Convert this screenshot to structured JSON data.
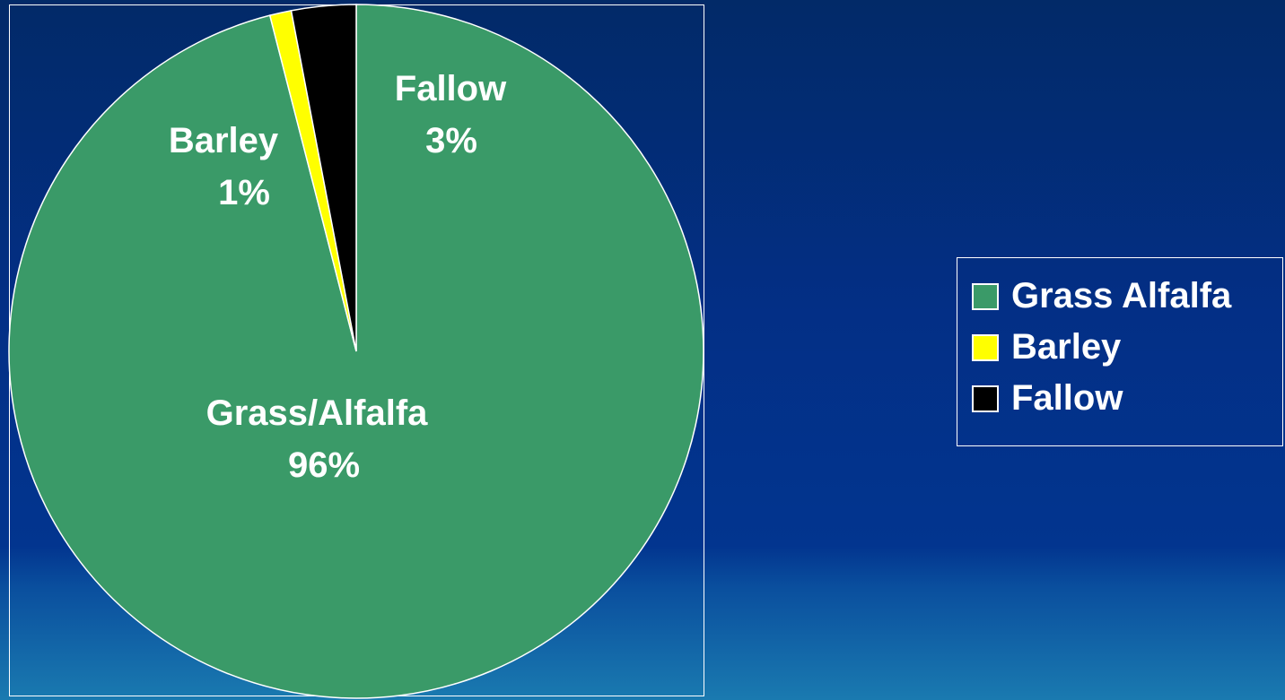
{
  "chart_data": {
    "type": "pie",
    "title": "",
    "slices": [
      {
        "name": "Grass/Alfalfa",
        "value": 96,
        "label": "Grass/Alfalfa",
        "percent_label": "96%",
        "color": "#3a9a68"
      },
      {
        "name": "Barley",
        "value": 1,
        "label": "Barley",
        "percent_label": "1%",
        "color": "#ffff00"
      },
      {
        "name": "Fallow",
        "value": 3,
        "label": "Fallow",
        "percent_label": "3%",
        "color": "#000000"
      }
    ],
    "legend": {
      "placement": "right",
      "items": [
        {
          "label": "Grass Alfalfa",
          "color": "#3a9a68"
        },
        {
          "label": "Barley",
          "color": "#ffff00"
        },
        {
          "label": "Fallow",
          "color": "#000000"
        }
      ]
    }
  },
  "colors": {
    "background_top": "#022a68",
    "background_bottom": "#1a7ab0",
    "border": "#ffffff",
    "text": "#ffffff"
  }
}
